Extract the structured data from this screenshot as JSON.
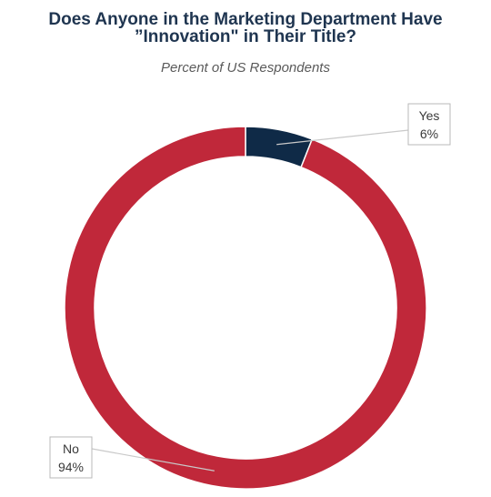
{
  "chart_data": {
    "type": "pie",
    "title_line1": "Does Anyone in the Marketing Department Have",
    "title_line2": "”Innovation\" in Their Title?",
    "subtitle": "Percent of US Respondents",
    "donut": true,
    "categories": [
      "Yes",
      "No"
    ],
    "values": [
      6,
      94
    ],
    "value_labels": [
      "6%",
      "94%"
    ],
    "colors": [
      "#0f2a47",
      "#c0283a"
    ]
  }
}
